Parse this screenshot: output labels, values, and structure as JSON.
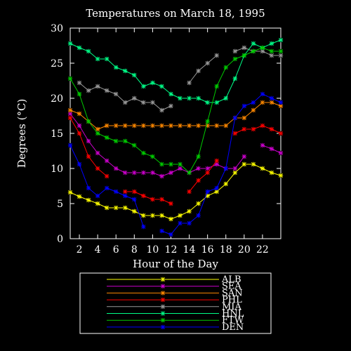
{
  "chart_data": {
    "type": "line",
    "title": "Temperatures on March 18, 1995",
    "xlabel": "Hour of the Day",
    "ylabel": "Degrees (°C)",
    "xlim": [
      1,
      24
    ],
    "ylim": [
      0,
      30
    ],
    "xticks": [
      2,
      4,
      6,
      8,
      10,
      12,
      14,
      16,
      18,
      20,
      22
    ],
    "yticks": [
      0,
      5,
      10,
      15,
      20,
      25,
      30
    ],
    "grid": false,
    "legend_position": "below plot",
    "x": [
      1,
      2,
      3,
      4,
      5,
      6,
      7,
      8,
      9,
      10,
      11,
      12,
      13,
      14,
      15,
      16,
      17,
      18,
      19,
      20,
      21,
      22,
      23,
      24
    ],
    "series": [
      {
        "name": "ALB",
        "color": "#ffff00",
        "values": [
          6.6,
          6.0,
          5.5,
          5.0,
          4.4,
          4.4,
          4.4,
          3.9,
          3.3,
          3.3,
          3.3,
          2.8,
          3.3,
          3.9,
          5.0,
          6.1,
          6.7,
          7.8,
          9.4,
          10.6,
          10.6,
          10.0,
          9.4,
          9.0
        ]
      },
      {
        "name": "SEA",
        "color": "#cc00cc",
        "values": [
          17.8,
          16.1,
          13.9,
          12.2,
          11.1,
          10.0,
          9.4,
          9.4,
          9.4,
          9.4,
          8.9,
          9.4,
          10.0,
          9.4,
          10.0,
          10.0,
          10.6,
          10.0,
          10.0,
          11.7,
          null,
          13.3,
          12.8,
          12.2
        ]
      },
      {
        "name": "SAN",
        "color": "#ff8800",
        "values": [
          18.3,
          17.8,
          16.7,
          15.6,
          16.1,
          16.1,
          16.1,
          16.1,
          16.1,
          16.1,
          16.1,
          16.1,
          16.1,
          16.1,
          16.1,
          16.1,
          16.1,
          16.1,
          17.2,
          17.2,
          18.3,
          19.4,
          19.4,
          18.9
        ]
      },
      {
        "name": "PHL",
        "color": "#ff0000",
        "values": [
          17.2,
          15.0,
          11.7,
          10.0,
          8.9,
          null,
          6.7,
          6.7,
          6.1,
          5.6,
          5.6,
          5.0,
          null,
          6.7,
          8.3,
          9.4,
          11.1,
          null,
          15.0,
          15.6,
          15.6,
          16.1,
          15.6,
          15.0
        ]
      },
      {
        "name": "MIA",
        "color": "#999999",
        "values": [
          null,
          22.2,
          21.1,
          21.7,
          21.1,
          20.6,
          19.4,
          20.0,
          19.4,
          19.4,
          18.3,
          18.9,
          null,
          22.2,
          23.9,
          25.0,
          26.1,
          null,
          26.7,
          27.2,
          26.7,
          26.7,
          26.1,
          26.1
        ]
      },
      {
        "name": "HNL",
        "color": "#00ff88",
        "values": [
          27.8,
          27.2,
          26.7,
          25.6,
          25.6,
          24.4,
          23.9,
          23.3,
          21.7,
          22.2,
          21.7,
          20.6,
          20.0,
          20.0,
          20.0,
          19.4,
          19.4,
          20.0,
          22.8,
          26.1,
          27.8,
          27.2,
          27.8,
          28.3
        ]
      },
      {
        "name": "FTW",
        "color": "#00cc00",
        "values": [
          22.8,
          20.6,
          16.7,
          15.0,
          14.4,
          13.9,
          13.9,
          13.3,
          12.2,
          11.7,
          10.6,
          10.6,
          10.6,
          9.4,
          11.7,
          16.7,
          21.7,
          24.4,
          25.6,
          26.1,
          26.7,
          27.2,
          26.7,
          26.7
        ]
      },
      {
        "name": "DEN",
        "color": "#0000ff",
        "values": [
          13.3,
          10.6,
          7.2,
          6.1,
          7.2,
          6.7,
          6.1,
          5.6,
          1.7,
          null,
          1.1,
          0.6,
          2.2,
          2.2,
          3.3,
          6.7,
          7.2,
          10.0,
          17.2,
          18.9,
          19.4,
          20.6,
          20.0,
          19.4
        ]
      }
    ]
  }
}
